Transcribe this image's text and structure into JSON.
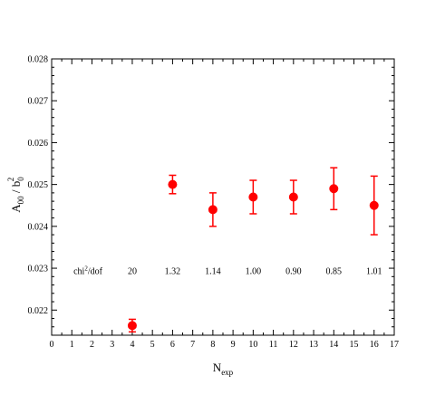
{
  "chart_data": {
    "type": "scatter",
    "xlabel": {
      "main": "N",
      "sub": "exp"
    },
    "ylabel": {
      "main": "A",
      "sub1": "00",
      "mid": " / b",
      "sub2": "0",
      "sup": "2"
    },
    "xlim": [
      0,
      17
    ],
    "ylim": [
      0.0214,
      0.028
    ],
    "x_ticks": [
      0,
      1,
      2,
      3,
      4,
      5,
      6,
      7,
      8,
      9,
      10,
      11,
      12,
      13,
      14,
      15,
      16,
      17
    ],
    "x_tick_labels": [
      "0",
      "1",
      "2",
      "3",
      "4",
      "5",
      "6",
      "7",
      "8",
      "9",
      "10",
      "11",
      "12",
      "13",
      "14",
      "15",
      "16",
      "17"
    ],
    "y_ticks": [
      0.022,
      0.023,
      0.024,
      0.025,
      0.026,
      0.027,
      0.028
    ],
    "y_tick_labels": [
      "0.022",
      "0.023",
      "0.024",
      "0.025",
      "0.026",
      "0.027",
      "0.028"
    ],
    "grid": false,
    "marker_color": "#ff0000",
    "points": [
      {
        "x": 4,
        "y": 0.02163,
        "err_low": 0.00015,
        "err_high": 0.00015
      },
      {
        "x": 6,
        "y": 0.025,
        "err_low": 0.00022,
        "err_high": 0.00022
      },
      {
        "x": 8,
        "y": 0.0244,
        "err_low": 0.0004,
        "err_high": 0.0004
      },
      {
        "x": 10,
        "y": 0.0247,
        "err_low": 0.0004,
        "err_high": 0.0004
      },
      {
        "x": 12,
        "y": 0.0247,
        "err_low": 0.0004,
        "err_high": 0.0004
      },
      {
        "x": 14,
        "y": 0.0249,
        "err_low": 0.0005,
        "err_high": 0.0005
      },
      {
        "x": 16,
        "y": 0.0245,
        "err_low": 0.0007,
        "err_high": 0.0007
      }
    ],
    "annotations": {
      "label": {
        "main": "chi",
        "sup": "2",
        "rest": "/dof"
      },
      "label_x": 1.8,
      "y": 0.02293,
      "values": [
        {
          "x": 4,
          "text": "20"
        },
        {
          "x": 6,
          "text": "1.32"
        },
        {
          "x": 8,
          "text": "1.14"
        },
        {
          "x": 10,
          "text": "1.00"
        },
        {
          "x": 12,
          "text": "0.90"
        },
        {
          "x": 14,
          "text": "0.85"
        },
        {
          "x": 16,
          "text": "1.01"
        }
      ]
    }
  }
}
